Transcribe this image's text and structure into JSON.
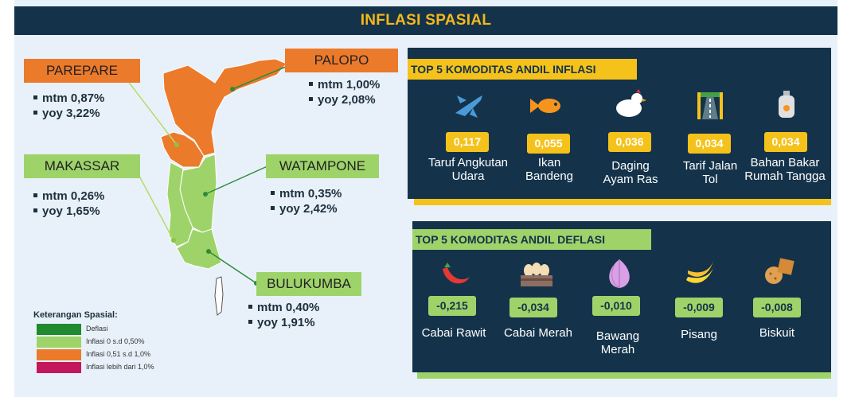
{
  "title": "INFLASI SPASIAL",
  "regions": {
    "parepare": {
      "name": "PAREPARE",
      "mtm": "mtm 0,87%",
      "yoy": "yoy  3,22%"
    },
    "palopo": {
      "name": "PALOPO",
      "mtm": "mtm 1,00%",
      "yoy": "yoy  2,08%"
    },
    "makassar": {
      "name": "MAKASSAR",
      "mtm": "mtm 0,26%",
      "yoy": "yoy  1,65%"
    },
    "watampone": {
      "name": "WATAMPONE",
      "mtm": "mtm  0,35%",
      "yoy": "yoy   2,42%"
    },
    "bulukumba": {
      "name": "BULUKUMBA",
      "mtm": "mtm 0,40%",
      "yoy": "yoy  1,91%"
    }
  },
  "legend": {
    "title": "Keterangan Spasial:",
    "items": [
      {
        "label": "Deflasi",
        "color": "#1f8a2e"
      },
      {
        "label": "Inflasi 0 s.d 0,50%",
        "color": "#9ed36a"
      },
      {
        "label": "Inflasi 0,51 s.d 1,0%",
        "color": "#ec7a2b"
      },
      {
        "label": "Inflasi lebih dari 1,0%",
        "color": "#c2185b"
      }
    ]
  },
  "inflation": {
    "title": "TOP 5 KOMODITAS ANDIL INFLASI",
    "items": [
      {
        "value": "0,117",
        "name1": "Taruf Angkutan",
        "name2": "Udara",
        "icon": "airplane-icon"
      },
      {
        "value": "0,055",
        "name1": "Ikan",
        "name2": "Bandeng",
        "icon": "fish-icon"
      },
      {
        "value": "0,036",
        "name1": "Daging",
        "name2": "Ayam Ras",
        "icon": "chicken-icon"
      },
      {
        "value": "0,034",
        "name1": "Tarif Jalan",
        "name2": "Tol",
        "icon": "toll-road-icon"
      },
      {
        "value": "0,034",
        "name1": "Bahan Bakar",
        "name2": "Rumah Tangga",
        "icon": "gas-cylinder-icon"
      }
    ]
  },
  "deflation": {
    "title": "TOP 5 KOMODITAS ANDIL DEFLASI",
    "items": [
      {
        "value": "-0,215",
        "name1": "Cabai Rawit",
        "name2": "",
        "icon": "chili-icon"
      },
      {
        "value": "-0,034",
        "name1": "Cabai Merah",
        "name2": "",
        "icon": "eggs-icon"
      },
      {
        "value": "-0,010",
        "name1": "Bawang",
        "name2": "Merah",
        "icon": "onion-icon"
      },
      {
        "value": "-0,009",
        "name1": "Pisang",
        "name2": "",
        "icon": "banana-icon"
      },
      {
        "value": "-0,008",
        "name1": "Biskuit",
        "name2": "",
        "icon": "biscuit-icon"
      }
    ]
  },
  "colors": {
    "navy": "#14334a",
    "yellow": "#f5c21b",
    "orange": "#ec7a2b",
    "light_green": "#9ed36a"
  }
}
